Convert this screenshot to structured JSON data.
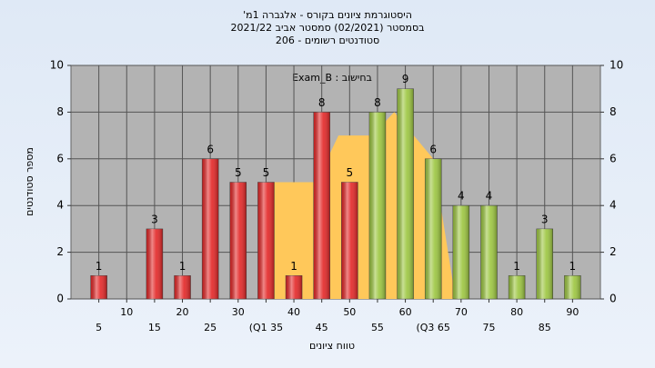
{
  "chart_data": {
    "type": "bar",
    "title": "היסטוגרמת ציונים בקורס - אלגברה 1מ'",
    "subtitle": "בסמסטר (02/2021) סמסטר אביב 2021/22",
    "subtitle2": "סטודנטים רשומים - 206",
    "annotation": "בחישוב : Exam_B",
    "x_label": "טווח ציונים",
    "y_label": "מספר סטודנטים",
    "x": [
      5,
      10,
      15,
      20,
      25,
      30,
      35,
      40,
      45,
      50,
      55,
      60,
      65,
      70,
      75,
      80,
      85,
      90
    ],
    "values": [
      1,
      0,
      3,
      1,
      6,
      5,
      5,
      1,
      8,
      5,
      8,
      9,
      6,
      4,
      4,
      1,
      3,
      1
    ],
    "colors": [
      "#e32626",
      "#e32626",
      "#e32626",
      "#e32626",
      "#e32626",
      "#e32626",
      "#e32626",
      "#e32626",
      "#e32626",
      "#e32626",
      "#9cc63f",
      "#9cc63f",
      "#9cc63f",
      "#9cc63f",
      "#9cc63f",
      "#9cc63f",
      "#9cc63f",
      "#9cc63f"
    ],
    "area": {
      "color": "#ffc85a",
      "x": [
        36,
        44,
        48,
        54,
        58,
        65,
        69
      ],
      "values": [
        5,
        5,
        7,
        7,
        8,
        6,
        0
      ]
    },
    "xlim": [
      0,
      95
    ],
    "xticks": [
      5,
      10,
      15,
      20,
      25,
      30,
      {
        "value": 35,
        "label": "(Q1 35"
      },
      40,
      45,
      50,
      55,
      60,
      {
        "value": 65,
        "label": "(Q3 65"
      },
      70,
      75,
      80,
      85,
      90
    ],
    "ylim": [
      0,
      10
    ],
    "yticks": [
      0,
      2,
      4,
      6,
      8,
      10
    ],
    "y2lim": [
      0,
      10
    ],
    "y2ticks": [
      0,
      2,
      4,
      6,
      8,
      10
    ],
    "grid": true
  }
}
